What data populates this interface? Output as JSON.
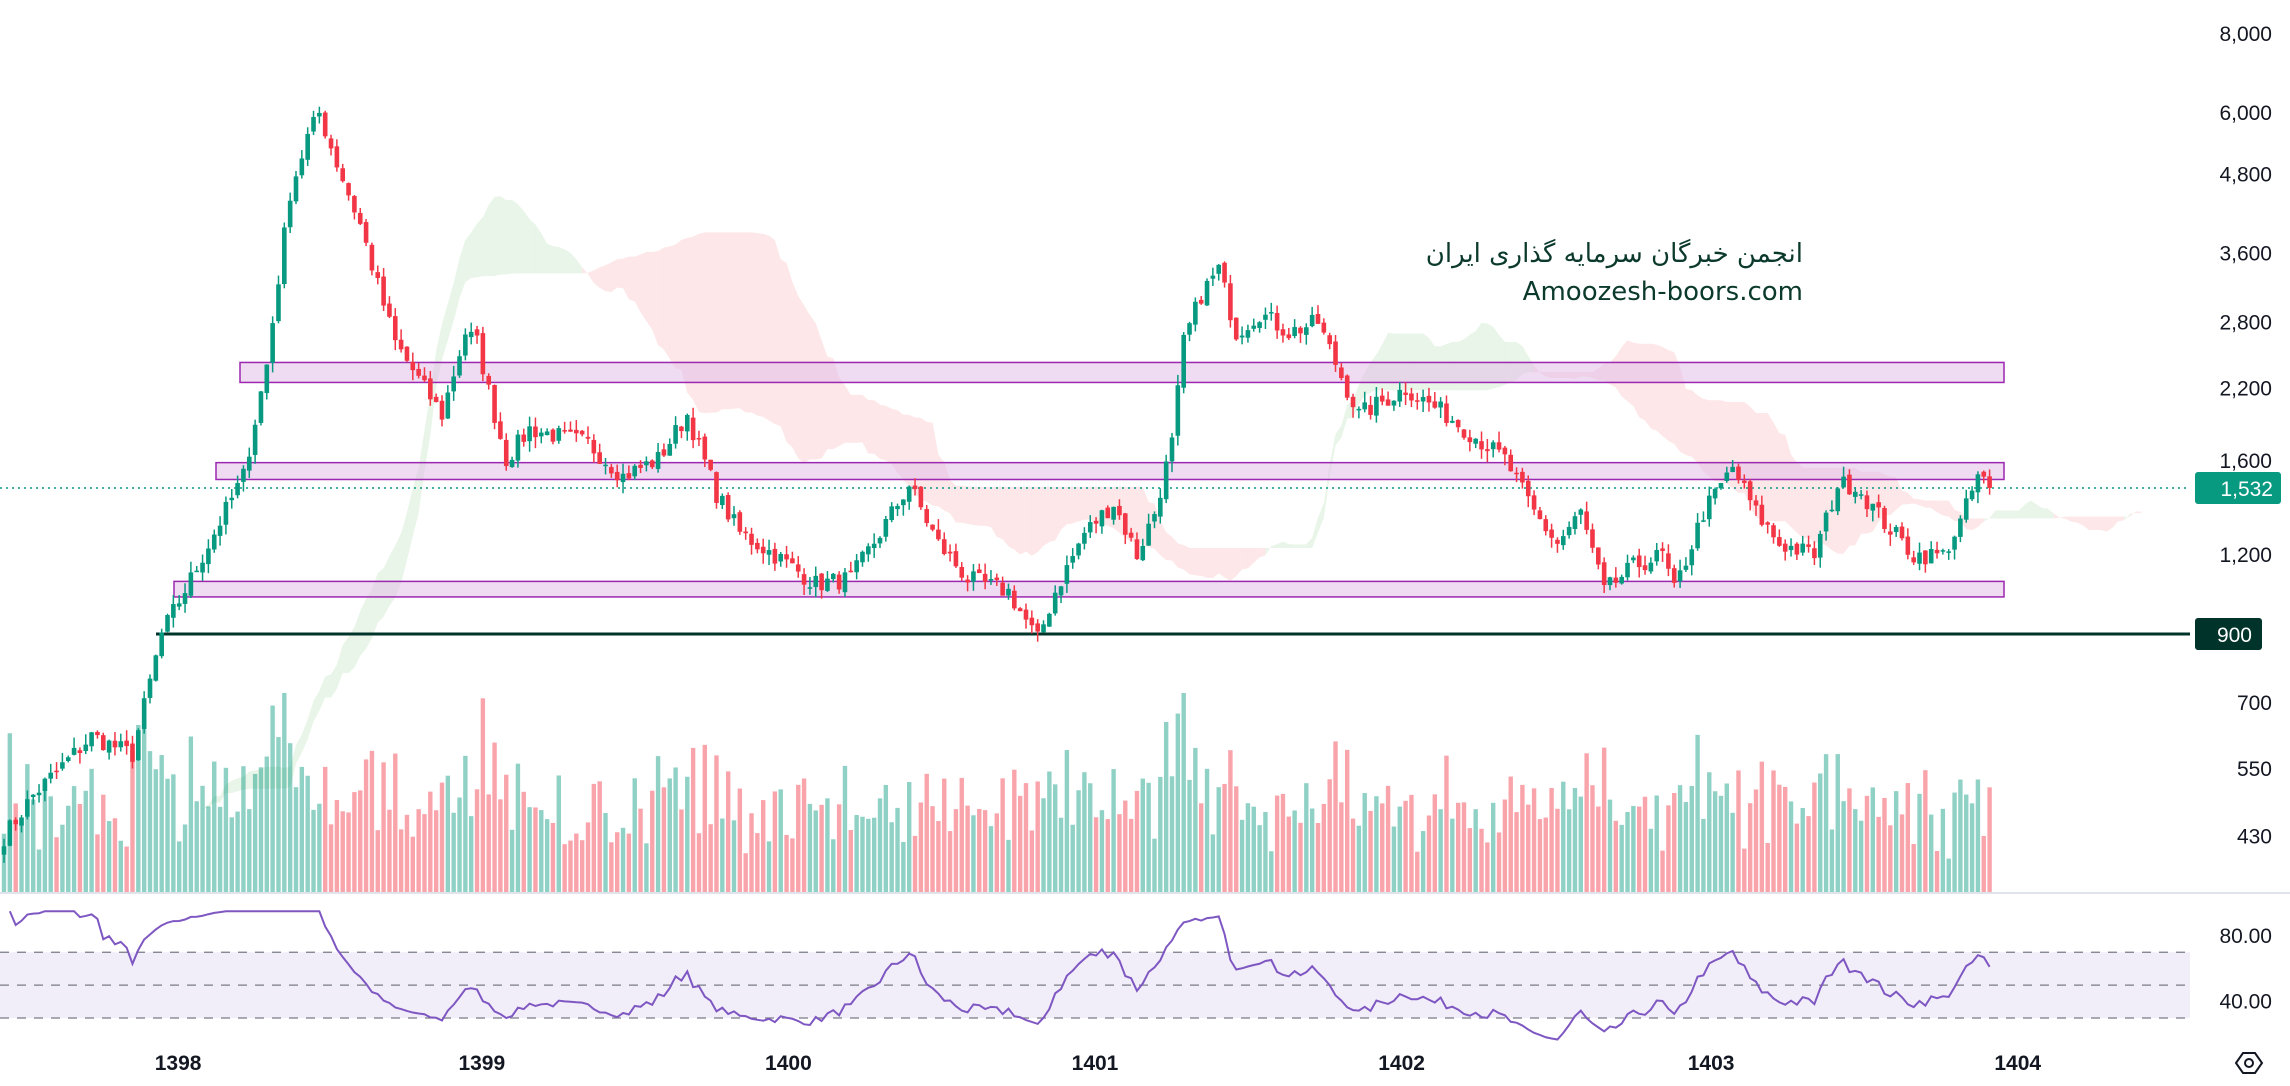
{
  "watermark": {
    "line1": "انجمن خبرگان سرمایه گذاری ایران",
    "line2": "Amoozesh-boors.com"
  },
  "colors": {
    "up": "#089981",
    "down": "#F23645",
    "rsi": "#7E57C2",
    "zone_border": "#9C27B0",
    "zone_fill": "#E1BEE7",
    "support_line": "#00332A"
  },
  "last_price_label": "1,532",
  "support_label": "900",
  "chart_data": {
    "type": "candlestick",
    "timeframe": "weekly",
    "price_scale": "log",
    "price_ticks": [
      "8,000",
      "6,000",
      "4,800",
      "3,600",
      "2,800",
      "2,200",
      "1,600",
      "1,200",
      "700",
      "550",
      "430"
    ],
    "price_tick_values": [
      8000,
      6000,
      4800,
      3600,
      2800,
      2200,
      1600,
      1200,
      700,
      550,
      430
    ],
    "x_ticks": [
      {
        "label": "1398",
        "week": 30.5
      },
      {
        "label": "1399",
        "week": 82.5
      },
      {
        "label": "1400",
        "week": 135
      },
      {
        "label": "1401",
        "week": 187.5
      },
      {
        "label": "1402",
        "week": 240
      },
      {
        "label": "1403",
        "week": 293
      },
      {
        "label": "1404",
        "week": 345.5
      }
    ],
    "close_path_approx": [
      [
        0,
        430
      ],
      [
        5,
        500
      ],
      [
        15,
        620
      ],
      [
        22,
        580
      ],
      [
        27,
        900
      ],
      [
        32,
        1100
      ],
      [
        41,
        1600
      ],
      [
        45,
        2400
      ],
      [
        49,
        4500
      ],
      [
        52,
        5500
      ],
      [
        54,
        6000
      ],
      [
        57,
        5000
      ],
      [
        61,
        4000
      ],
      [
        64,
        3200
      ],
      [
        67,
        2600
      ],
      [
        72,
        2200
      ],
      [
        75,
        2000
      ],
      [
        79,
        2700
      ],
      [
        81,
        2600
      ],
      [
        84,
        2000
      ],
      [
        86,
        1700
      ],
      [
        90,
        1900
      ],
      [
        95,
        1850
      ],
      [
        100,
        1800
      ],
      [
        106,
        1600
      ],
      [
        112,
        1700
      ],
      [
        117,
        2000
      ],
      [
        122,
        1500
      ],
      [
        126,
        1300
      ],
      [
        132,
        1200
      ],
      [
        139,
        1080
      ],
      [
        145,
        1100
      ],
      [
        150,
        1300
      ],
      [
        155,
        1550
      ],
      [
        160,
        1250
      ],
      [
        165,
        1100
      ],
      [
        172,
        1050
      ],
      [
        177,
        880
      ],
      [
        180,
        1050
      ],
      [
        185,
        1300
      ],
      [
        190,
        1450
      ],
      [
        194,
        1200
      ],
      [
        197,
        1400
      ],
      [
        200,
        1800
      ],
      [
        202,
        2600
      ],
      [
        205,
        3100
      ],
      [
        208,
        3400
      ],
      [
        211,
        2700
      ],
      [
        215,
        2900
      ],
      [
        220,
        2700
      ],
      [
        225,
        2800
      ],
      [
        229,
        2300
      ],
      [
        232,
        2000
      ],
      [
        240,
        2200
      ],
      [
        247,
        2000
      ],
      [
        257,
        1700
      ],
      [
        262,
        1400
      ],
      [
        266,
        1250
      ],
      [
        270,
        1400
      ],
      [
        274,
        1050
      ],
      [
        279,
        1150
      ],
      [
        284,
        1200
      ],
      [
        286,
        1050
      ],
      [
        291,
        1400
      ],
      [
        296,
        1650
      ],
      [
        300,
        1400
      ],
      [
        304,
        1250
      ],
      [
        310,
        1200
      ],
      [
        314,
        1550
      ],
      [
        317,
        1550
      ],
      [
        322,
        1350
      ],
      [
        327,
        1200
      ],
      [
        332,
        1200
      ],
      [
        335,
        1350
      ],
      [
        338,
        1600
      ],
      [
        340,
        1532
      ]
    ],
    "horizontal_zones": [
      {
        "from": 2250,
        "to": 2420
      },
      {
        "from": 1580,
        "to": 1680
      },
      {
        "from": 1030,
        "to": 1090
      }
    ],
    "support_level": 900,
    "last_price": 1532,
    "indicators": {
      "ichimoku_cloud": true,
      "volume": true,
      "rsi": {
        "period": 14,
        "levels": [
          70,
          50,
          30
        ],
        "ticks": [
          "80.00",
          "40.00"
        ],
        "tick_values": [
          80,
          40
        ]
      }
    }
  }
}
